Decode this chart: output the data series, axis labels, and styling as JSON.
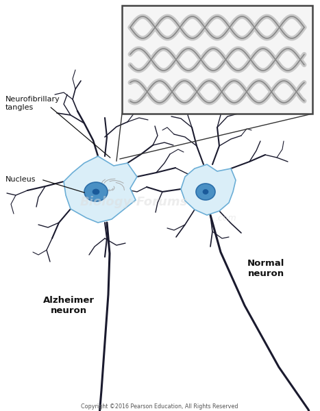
{
  "bg_color": "#ffffff",
  "cell_body_color": "#daeef8",
  "cell_body_edge": "#6baed6",
  "nucleus_color": "#4a90c4",
  "nucleus_edge": "#2c6faa",
  "axon_color": "#1a1a2e",
  "dendrite_color": "#1a1a2e",
  "tangle_color": "#c8c8c8",
  "tangle_edge": "#888888",
  "inset_bg": "#f5f5f5",
  "inset_border": "#444444",
  "label_alzheimer": "Alzheimer\nneuron",
  "label_normal": "Normal\nneuron",
  "label_tangles": "Neurofibrillary\ntangles",
  "label_nucleus": "Nucleus",
  "label_copyright": "Copyright ©2016 Pearson Education, All Rights Reserved",
  "figsize": [
    4.67,
    6.0
  ],
  "dpi": 100
}
